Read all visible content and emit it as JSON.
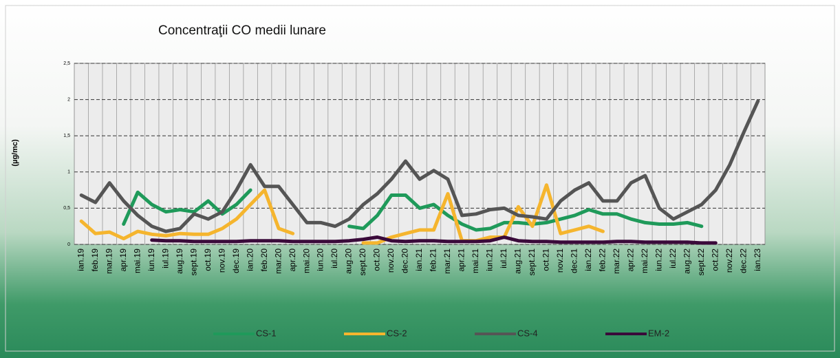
{
  "chart_data": {
    "type": "line",
    "title": "Concentraţii CO medii lunare",
    "y_label": "(µg/mc)",
    "categories": [
      "ian.19",
      "feb.19",
      "mar.19",
      "apr.19",
      "mai.19",
      "iun.19",
      "iul.19",
      "aug.19",
      "sept.19",
      "oct.19",
      "nov.19",
      "dec.19",
      "ian.20",
      "feb.20",
      "mar.20",
      "apr.20",
      "mai.20",
      "iun.20",
      "iul.20",
      "aug.20",
      "sept.20",
      "oct.20",
      "nov.20",
      "dec.20",
      "ian.21",
      "feb.21",
      "mar.21",
      "apr.21",
      "mai.21",
      "iun.21",
      "iul.21",
      "aug.21",
      "sept.21",
      "oct.21",
      "nov.21",
      "dec.21",
      "ian.22",
      "feb.22",
      "mar.22",
      "apr.22",
      "mai.22",
      "iun.22",
      "iul.22",
      "aug.22",
      "sept.22",
      "oct.22",
      "nov.22",
      "dec.22",
      "ian.23"
    ],
    "series": [
      {
        "name": "CS-1",
        "color": "#1f9a5a",
        "values": [
          null,
          null,
          null,
          0.28,
          0.72,
          0.55,
          0.45,
          0.48,
          0.45,
          0.6,
          0.42,
          0.55,
          0.75,
          null,
          null,
          null,
          null,
          null,
          null,
          0.25,
          0.22,
          0.4,
          0.68,
          0.68,
          0.5,
          0.55,
          0.4,
          0.28,
          0.2,
          0.22,
          0.3,
          0.3,
          0.28,
          0.3,
          0.35,
          0.4,
          0.48,
          0.42,
          0.42,
          0.35,
          0.3,
          0.28,
          0.28,
          0.3,
          0.25,
          null,
          null,
          null,
          null
        ]
      },
      {
        "name": "CS-2",
        "color": "#f5b52e",
        "values": [
          0.32,
          0.15,
          0.17,
          0.08,
          0.18,
          0.14,
          0.12,
          0.15,
          0.14,
          0.14,
          0.22,
          0.35,
          0.55,
          0.75,
          0.22,
          0.15,
          null,
          null,
          null,
          null,
          0.02,
          0.02,
          0.1,
          0.15,
          0.2,
          0.2,
          0.7,
          0.05,
          0.05,
          0.1,
          0.1,
          0.52,
          0.25,
          0.82,
          0.15,
          0.2,
          0.25,
          0.18,
          null,
          null,
          null,
          null,
          null,
          null,
          null,
          null,
          null,
          null,
          null
        ]
      },
      {
        "name": "CS-4",
        "color": "#555555",
        "values": [
          0.68,
          0.58,
          0.85,
          0.6,
          0.4,
          0.25,
          0.18,
          0.22,
          0.42,
          0.35,
          0.45,
          0.75,
          1.1,
          0.8,
          0.8,
          0.55,
          0.3,
          0.3,
          0.25,
          0.35,
          0.55,
          0.7,
          0.9,
          1.15,
          0.9,
          1.02,
          0.9,
          0.4,
          0.42,
          0.48,
          0.5,
          0.4,
          0.38,
          0.35,
          0.6,
          0.75,
          0.85,
          0.6,
          0.6,
          0.85,
          0.95,
          0.5,
          0.35,
          0.45,
          0.55,
          0.75,
          1.1,
          1.55,
          1.98
        ]
      },
      {
        "name": "EM-2",
        "color": "#3a0a3a",
        "values": [
          null,
          null,
          null,
          null,
          null,
          0.06,
          0.05,
          0.05,
          0.04,
          0.04,
          0.04,
          0.04,
          0.05,
          0.05,
          0.05,
          0.04,
          0.04,
          0.04,
          0.04,
          0.05,
          0.07,
          0.1,
          0.05,
          0.04,
          0.05,
          0.05,
          0.04,
          0.04,
          0.04,
          0.05,
          0.1,
          0.05,
          0.04,
          0.04,
          0.03,
          0.03,
          0.03,
          0.03,
          0.04,
          0.04,
          0.03,
          0.03,
          0.03,
          0.03,
          0.02,
          0.02,
          null,
          null,
          null
        ]
      }
    ],
    "ylim": [
      0,
      2.5
    ],
    "yticks": [
      0,
      {
        "value": 0.5,
        "label": "0,5"
      },
      1,
      {
        "value": 1.5,
        "label": "1,5"
      },
      2,
      {
        "value": 2.5,
        "label": "2,5"
      }
    ],
    "grid": true
  }
}
